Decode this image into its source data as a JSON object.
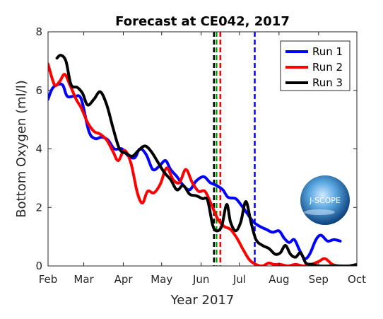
{
  "chart_data": {
    "type": "line",
    "title": "Forecast at CE042, 2017",
    "xlabel": "Year 2017",
    "ylabel": "Bottom Oxygen (ml/l)",
    "xlim": [
      "2017-02-01",
      "2017-10-01"
    ],
    "ylim": [
      0,
      8
    ],
    "x_ticks": [
      "Feb",
      "Mar",
      "Apr",
      "May",
      "Jun",
      "Jul",
      "Aug",
      "Sep",
      "Oct"
    ],
    "y_ticks": [
      0,
      2,
      4,
      6,
      8
    ],
    "grid": false,
    "legend": {
      "placement": "top-right"
    },
    "logo_text": "J-SCOPE",
    "series": [
      {
        "name": "Run 1",
        "color": "#0000ff",
        "points": [
          [
            "2017-02-01",
            5.7
          ],
          [
            "2017-02-05",
            6.1
          ],
          [
            "2017-02-12",
            6.2
          ],
          [
            "2017-02-16",
            5.8
          ],
          [
            "2017-02-22",
            5.8
          ],
          [
            "2017-02-27",
            5.7
          ],
          [
            "2017-03-05",
            4.6
          ],
          [
            "2017-03-10",
            4.35
          ],
          [
            "2017-03-15",
            4.4
          ],
          [
            "2017-03-20",
            4.3
          ],
          [
            "2017-03-25",
            4.0
          ],
          [
            "2017-03-31",
            4.0
          ],
          [
            "2017-04-05",
            3.75
          ],
          [
            "2017-04-10",
            3.7
          ],
          [
            "2017-04-14",
            4.0
          ],
          [
            "2017-04-19",
            3.8
          ],
          [
            "2017-04-24",
            3.3
          ],
          [
            "2017-04-29",
            3.4
          ],
          [
            "2017-05-04",
            3.6
          ],
          [
            "2017-05-08",
            3.3
          ],
          [
            "2017-05-13",
            3.05
          ],
          [
            "2017-05-18",
            2.75
          ],
          [
            "2017-05-23",
            2.6
          ],
          [
            "2017-05-28",
            2.9
          ],
          [
            "2017-06-03",
            3.05
          ],
          [
            "2017-06-08",
            2.85
          ],
          [
            "2017-06-13",
            2.75
          ],
          [
            "2017-06-18",
            2.6
          ],
          [
            "2017-06-22",
            2.35
          ],
          [
            "2017-06-28",
            2.3
          ],
          [
            "2017-07-02",
            2.1
          ],
          [
            "2017-07-07",
            1.8
          ],
          [
            "2017-07-12",
            1.5
          ],
          [
            "2017-07-17",
            1.35
          ],
          [
            "2017-07-22",
            1.25
          ],
          [
            "2017-07-27",
            1.15
          ],
          [
            "2017-08-01",
            1.2
          ],
          [
            "2017-08-05",
            0.95
          ],
          [
            "2017-08-09",
            0.8
          ],
          [
            "2017-08-13",
            0.9
          ],
          [
            "2017-08-17",
            0.55
          ],
          [
            "2017-08-21",
            0.25
          ],
          [
            "2017-08-25",
            0.4
          ],
          [
            "2017-08-30",
            0.9
          ],
          [
            "2017-09-03",
            1.05
          ],
          [
            "2017-09-08",
            0.85
          ],
          [
            "2017-09-13",
            0.9
          ],
          [
            "2017-09-18",
            0.85
          ]
        ]
      },
      {
        "name": "Run 2",
        "color": "#ff0000",
        "points": [
          [
            "2017-02-01",
            6.9
          ],
          [
            "2017-02-06",
            6.2
          ],
          [
            "2017-02-10",
            6.3
          ],
          [
            "2017-02-14",
            6.55
          ],
          [
            "2017-02-18",
            6.2
          ],
          [
            "2017-02-23",
            5.7
          ],
          [
            "2017-02-27",
            5.4
          ],
          [
            "2017-03-04",
            4.9
          ],
          [
            "2017-03-09",
            4.6
          ],
          [
            "2017-03-14",
            4.5
          ],
          [
            "2017-03-19",
            4.3
          ],
          [
            "2017-03-24",
            3.9
          ],
          [
            "2017-03-28",
            3.6
          ],
          [
            "2017-04-02",
            3.95
          ],
          [
            "2017-04-07",
            3.5
          ],
          [
            "2017-04-12",
            2.5
          ],
          [
            "2017-04-16",
            2.15
          ],
          [
            "2017-04-20",
            2.55
          ],
          [
            "2017-04-25",
            2.5
          ],
          [
            "2017-04-30",
            2.8
          ],
          [
            "2017-05-05",
            3.35
          ],
          [
            "2017-05-10",
            2.95
          ],
          [
            "2017-05-15",
            2.85
          ],
          [
            "2017-05-20",
            3.3
          ],
          [
            "2017-05-25",
            2.85
          ],
          [
            "2017-05-30",
            2.55
          ],
          [
            "2017-06-04",
            2.55
          ],
          [
            "2017-06-09",
            2.1
          ],
          [
            "2017-06-14",
            1.6
          ],
          [
            "2017-06-19",
            1.35
          ],
          [
            "2017-06-24",
            1.25
          ],
          [
            "2017-06-29",
            0.95
          ],
          [
            "2017-07-04",
            0.55
          ],
          [
            "2017-07-09",
            0.2
          ],
          [
            "2017-07-14",
            0.05
          ],
          [
            "2017-07-19",
            0.0
          ],
          [
            "2017-07-24",
            0.1
          ],
          [
            "2017-07-28",
            0.05
          ],
          [
            "2017-08-02",
            0.05
          ],
          [
            "2017-08-08",
            0.0
          ],
          [
            "2017-08-14",
            0.05
          ],
          [
            "2017-08-20",
            0.0
          ],
          [
            "2017-08-26",
            0.05
          ],
          [
            "2017-09-01",
            0.15
          ],
          [
            "2017-09-06",
            0.25
          ],
          [
            "2017-09-12",
            0.05
          ],
          [
            "2017-09-18",
            0.0
          ],
          [
            "2017-09-25",
            0.0
          ],
          [
            "2017-10-01",
            0.05
          ]
        ]
      },
      {
        "name": "Run 3",
        "color": "#000000",
        "points": [
          [
            "2017-02-08",
            7.1
          ],
          [
            "2017-02-11",
            7.2
          ],
          [
            "2017-02-15",
            7.0
          ],
          [
            "2017-02-19",
            6.2
          ],
          [
            "2017-02-24",
            6.1
          ],
          [
            "2017-02-28",
            5.9
          ],
          [
            "2017-03-04",
            5.5
          ],
          [
            "2017-03-09",
            5.7
          ],
          [
            "2017-03-14",
            5.95
          ],
          [
            "2017-03-19",
            5.5
          ],
          [
            "2017-03-24",
            4.7
          ],
          [
            "2017-03-29",
            4.0
          ],
          [
            "2017-04-03",
            3.85
          ],
          [
            "2017-04-08",
            3.75
          ],
          [
            "2017-04-13",
            3.95
          ],
          [
            "2017-04-18",
            4.1
          ],
          [
            "2017-04-23",
            3.9
          ],
          [
            "2017-04-28",
            3.55
          ],
          [
            "2017-05-03",
            3.2
          ],
          [
            "2017-05-08",
            2.95
          ],
          [
            "2017-05-13",
            2.6
          ],
          [
            "2017-05-18",
            2.75
          ],
          [
            "2017-05-23",
            2.45
          ],
          [
            "2017-05-28",
            2.4
          ],
          [
            "2017-06-02",
            2.3
          ],
          [
            "2017-06-06",
            2.25
          ],
          [
            "2017-06-10",
            1.4
          ],
          [
            "2017-06-13",
            1.2
          ],
          [
            "2017-06-17",
            1.35
          ],
          [
            "2017-06-21",
            2.1
          ],
          [
            "2017-06-24",
            1.5
          ],
          [
            "2017-06-28",
            1.2
          ],
          [
            "2017-07-02",
            1.5
          ],
          [
            "2017-07-06",
            2.2
          ],
          [
            "2017-07-10",
            1.5
          ],
          [
            "2017-07-14",
            0.9
          ],
          [
            "2017-07-19",
            0.7
          ],
          [
            "2017-07-24",
            0.6
          ],
          [
            "2017-07-29",
            0.4
          ],
          [
            "2017-08-02",
            0.45
          ],
          [
            "2017-08-06",
            0.7
          ],
          [
            "2017-08-10",
            0.4
          ],
          [
            "2017-08-14",
            0.3
          ],
          [
            "2017-08-18",
            0.45
          ],
          [
            "2017-08-22",
            0.1
          ],
          [
            "2017-08-27",
            0.05
          ],
          [
            "2017-09-02",
            0.0
          ],
          [
            "2017-09-10",
            0.0
          ],
          [
            "2017-09-18",
            0.0
          ],
          [
            "2017-09-25",
            0.0
          ],
          [
            "2017-10-01",
            0.05
          ]
        ]
      }
    ],
    "vertical_lines": [
      {
        "x": "2017-06-11",
        "color": "#000000",
        "style": "dashed"
      },
      {
        "x": "2017-06-13",
        "color": "#00a000",
        "style": "dashed"
      },
      {
        "x": "2017-06-16",
        "color": "#ff0000",
        "style": "dashed"
      },
      {
        "x": "2017-07-13",
        "color": "#0000ff",
        "style": "dashed"
      }
    ]
  }
}
